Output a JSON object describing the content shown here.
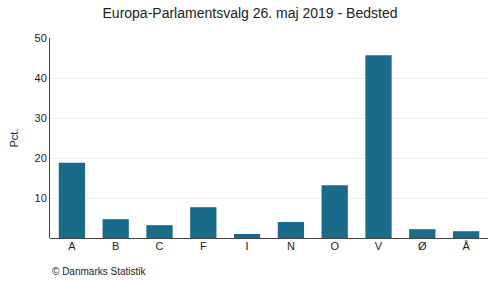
{
  "chart_data": {
    "type": "bar",
    "title": "Europa-Parlamentsvalg 26. maj 2019 - Bedsted",
    "ylabel": "Pct.",
    "annotations": [
      "© Danmarks Statistik"
    ],
    "categories": [
      "A",
      "B",
      "C",
      "F",
      "I",
      "N",
      "O",
      "V",
      "Ø",
      "Å"
    ],
    "values": [
      18.8,
      4.7,
      3.2,
      7.7,
      1.0,
      4.0,
      13.2,
      45.7,
      2.2,
      1.7
    ],
    "color": "#1a6b8a",
    "ylim": [
      0,
      50
    ],
    "yticks": [
      10,
      20,
      30,
      40,
      50
    ],
    "grid": true
  }
}
